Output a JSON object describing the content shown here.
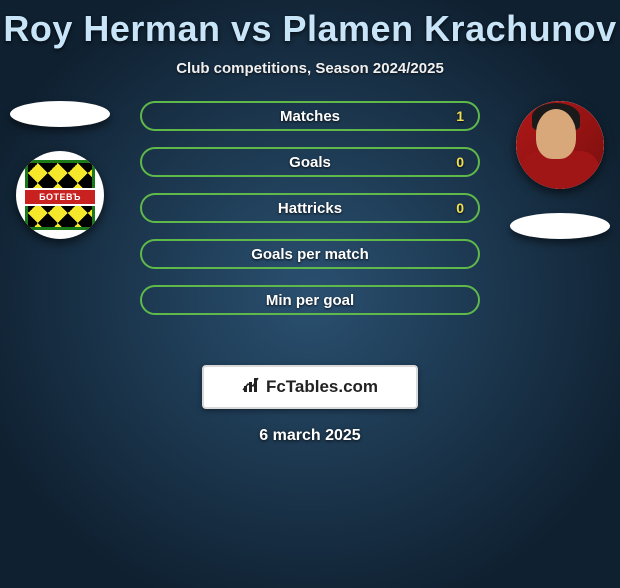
{
  "title": "Roy Herman vs Plamen Krachunov",
  "subtitle": "Club competitions, Season 2024/2025",
  "date": "6 march 2025",
  "logo_text": "FcTables.com",
  "left_badge_text": "БОТЕВЪ",
  "stat_row_border_color": "#5fb84a",
  "stat_value_color": "#f0e050",
  "stats": [
    {
      "label": "Matches",
      "value": "1"
    },
    {
      "label": "Goals",
      "value": "0"
    },
    {
      "label": "Hattricks",
      "value": "0"
    },
    {
      "label": "Goals per match",
      "value": ""
    },
    {
      "label": "Min per goal",
      "value": ""
    }
  ]
}
